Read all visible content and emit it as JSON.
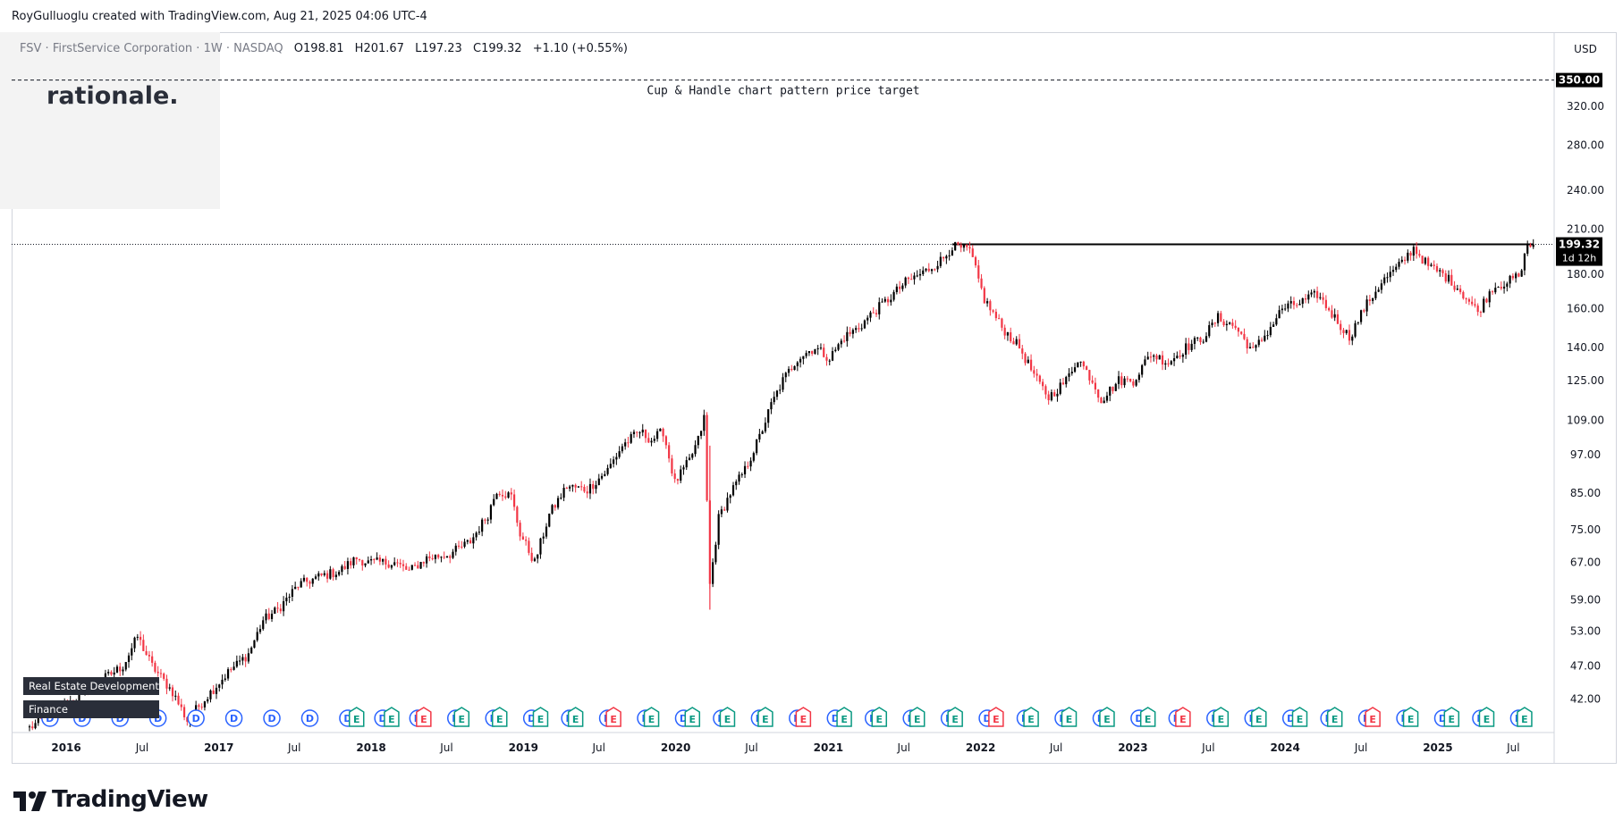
{
  "attribution": "RoyGulluoglu created with TradingView.com, Aug 21, 2025 04:06 UTC-4",
  "brand": {
    "name": "TradingView"
  },
  "watermark": {
    "text": "rationale."
  },
  "sector_labels": [
    "Real Estate Development",
    "Finance"
  ],
  "legend": {
    "symbol": "FSV",
    "name": "FirstService Corporation",
    "interval": "1W",
    "exchange": "NASDAQ",
    "open_label": "O",
    "open": "198.81",
    "high_label": "H",
    "high": "201.67",
    "low_label": "L",
    "low": "197.23",
    "close_label": "C",
    "close": "199.32",
    "change": "+1.10 (+0.55%)"
  },
  "currency": "USD",
  "annotation": {
    "text": "Cup & Handle chart pattern price target",
    "level": 350
  },
  "last_price": {
    "value": "199.32",
    "countdown": "1d 12h"
  },
  "colors": {
    "up": "#000000",
    "down": "#f23645",
    "accent": "#131722",
    "dividend": "#2962ff",
    "earnings": "#089981",
    "earnings_miss": "#f23645"
  },
  "chart_data": {
    "type": "candlestick",
    "scale": "log",
    "ylim": [
      38,
      400
    ],
    "xlim": [
      "2015-10-05",
      "2025-08-25"
    ],
    "ytick_labels": [
      "42.00",
      "47.00",
      "53.00",
      "59.00",
      "67.00",
      "75.00",
      "85.00",
      "97.00",
      "109.00",
      "125.00",
      "140.00",
      "160.00",
      "180.00",
      "210.00",
      "240.00",
      "280.00",
      "320.00"
    ],
    "xtick_labels": [
      {
        "date": "2016-01-01",
        "label": "2016"
      },
      {
        "date": "2016-07-01",
        "label": "Jul"
      },
      {
        "date": "2017-01-01",
        "label": "2017"
      },
      {
        "date": "2017-07-01",
        "label": "Jul"
      },
      {
        "date": "2018-01-01",
        "label": "2018"
      },
      {
        "date": "2018-07-01",
        "label": "Jul"
      },
      {
        "date": "2019-01-01",
        "label": "2019"
      },
      {
        "date": "2019-07-01",
        "label": "Jul"
      },
      {
        "date": "2020-01-01",
        "label": "2020"
      },
      {
        "date": "2020-07-01",
        "label": "Jul"
      },
      {
        "date": "2021-01-01",
        "label": "2021"
      },
      {
        "date": "2021-07-01",
        "label": "Jul"
      },
      {
        "date": "2022-01-01",
        "label": "2022"
      },
      {
        "date": "2022-07-01",
        "label": "Jul"
      },
      {
        "date": "2023-01-01",
        "label": "2023"
      },
      {
        "date": "2023-07-01",
        "label": "Jul"
      },
      {
        "date": "2024-01-01",
        "label": "2024"
      },
      {
        "date": "2024-07-01",
        "label": "Jul"
      },
      {
        "date": "2025-01-01",
        "label": "2025"
      },
      {
        "date": "2025-07-01",
        "label": "Jul"
      }
    ],
    "resistance": {
      "value": 199.32,
      "from": "2021-10-25",
      "to": "2025-08-18"
    },
    "target": {
      "value": 350,
      "label": "350.00"
    },
    "price_path": [
      [
        "2015-10-05",
        38
      ],
      [
        "2015-12-28",
        41
      ],
      [
        "2016-03-07",
        44
      ],
      [
        "2016-05-16",
        47
      ],
      [
        "2016-06-20",
        52
      ],
      [
        "2016-07-25",
        47
      ],
      [
        "2016-09-12",
        43
      ],
      [
        "2016-10-17",
        39
      ],
      [
        "2016-11-28",
        42
      ],
      [
        "2017-01-23",
        46
      ],
      [
        "2017-03-13",
        49
      ],
      [
        "2017-04-17",
        55
      ],
      [
        "2017-05-22",
        57
      ],
      [
        "2017-07-10",
        62
      ],
      [
        "2017-09-04",
        64
      ],
      [
        "2017-10-16",
        65
      ],
      [
        "2017-11-27",
        68
      ],
      [
        "2017-12-25",
        67
      ],
      [
        "2018-02-26",
        67
      ],
      [
        "2018-04-02",
        65
      ],
      [
        "2018-05-14",
        68
      ],
      [
        "2018-07-09",
        69
      ],
      [
        "2018-08-27",
        72
      ],
      [
        "2018-10-08",
        79
      ],
      [
        "2018-10-29",
        86
      ],
      [
        "2018-12-03",
        84
      ],
      [
        "2018-12-24",
        74
      ],
      [
        "2019-01-28",
        67
      ],
      [
        "2019-03-04",
        79
      ],
      [
        "2019-04-15",
        87
      ],
      [
        "2019-06-03",
        86
      ],
      [
        "2019-07-22",
        92
      ],
      [
        "2019-08-26",
        100
      ],
      [
        "2019-10-07",
        105
      ],
      [
        "2019-11-04",
        102
      ],
      [
        "2019-12-02",
        105
      ],
      [
        "2019-12-30",
        88
      ],
      [
        "2020-02-03",
        95
      ],
      [
        "2020-02-24",
        102
      ],
      [
        "2020-03-09",
        110
      ],
      [
        "2020-03-23",
        62
      ],
      [
        "2020-04-13",
        78
      ],
      [
        "2020-05-11",
        85
      ],
      [
        "2020-06-15",
        92
      ],
      [
        "2020-07-20",
        103
      ],
      [
        "2020-08-17",
        115
      ],
      [
        "2020-09-14",
        125
      ],
      [
        "2020-10-19",
        135
      ],
      [
        "2020-11-30",
        140
      ],
      [
        "2021-01-04",
        135
      ],
      [
        "2021-02-08",
        145
      ],
      [
        "2021-03-15",
        150
      ],
      [
        "2021-04-19",
        158
      ],
      [
        "2021-05-24",
        165
      ],
      [
        "2021-07-05",
        175
      ],
      [
        "2021-08-23",
        182
      ],
      [
        "2021-10-04",
        190
      ],
      [
        "2021-10-25",
        198
      ],
      [
        "2021-12-06",
        195
      ],
      [
        "2022-01-10",
        165
      ],
      [
        "2022-02-21",
        150
      ],
      [
        "2022-04-04",
        140
      ],
      [
        "2022-05-16",
        125
      ],
      [
        "2022-06-13",
        118
      ],
      [
        "2022-07-25",
        125
      ],
      [
        "2022-08-22",
        135
      ],
      [
        "2022-09-26",
        125
      ],
      [
        "2022-10-17",
        117
      ],
      [
        "2022-11-28",
        125
      ],
      [
        "2023-01-02",
        125
      ],
      [
        "2023-02-13",
        137
      ],
      [
        "2023-03-27",
        133
      ],
      [
        "2023-05-08",
        140
      ],
      [
        "2023-06-19",
        145
      ],
      [
        "2023-07-24",
        155
      ],
      [
        "2023-09-04",
        150
      ],
      [
        "2023-10-16",
        138
      ],
      [
        "2023-11-27",
        150
      ],
      [
        "2023-12-25",
        160
      ],
      [
        "2024-02-05",
        163
      ],
      [
        "2024-03-18",
        168
      ],
      [
        "2024-04-29",
        155
      ],
      [
        "2024-06-03",
        145
      ],
      [
        "2024-07-08",
        160
      ],
      [
        "2024-08-19",
        175
      ],
      [
        "2024-09-30",
        185
      ],
      [
        "2024-11-04",
        197
      ],
      [
        "2024-12-09",
        185
      ],
      [
        "2025-01-13",
        180
      ],
      [
        "2025-02-17",
        172
      ],
      [
        "2025-03-24",
        162
      ],
      [
        "2025-04-07",
        158
      ],
      [
        "2025-05-12",
        172
      ],
      [
        "2025-06-23",
        176
      ],
      [
        "2025-07-21",
        180
      ],
      [
        "2025-07-28",
        196
      ],
      [
        "2025-08-18",
        199
      ]
    ],
    "events": [
      {
        "type": "D",
        "date": "2015-11-23"
      },
      {
        "type": "D",
        "date": "2016-02-08"
      },
      {
        "type": "D",
        "date": "2016-05-09"
      },
      {
        "type": "D",
        "date": "2016-08-08"
      },
      {
        "type": "D",
        "date": "2016-11-07"
      },
      {
        "type": "D",
        "date": "2017-02-06"
      },
      {
        "type": "D",
        "date": "2017-05-08"
      },
      {
        "type": "D",
        "date": "2017-08-07"
      },
      {
        "type": "D",
        "date": "2017-11-06"
      },
      {
        "type": "E",
        "date": "2017-11-27"
      },
      {
        "type": "D",
        "date": "2018-01-29"
      },
      {
        "type": "E",
        "date": "2018-02-19"
      },
      {
        "type": "D",
        "date": "2018-04-23"
      },
      {
        "type": "E",
        "date": "2018-05-07"
      },
      {
        "type": "D",
        "date": "2018-07-23"
      },
      {
        "type": "E",
        "date": "2018-08-06"
      },
      {
        "type": "D",
        "date": "2018-10-22"
      },
      {
        "type": "E",
        "date": "2018-11-05"
      },
      {
        "type": "D",
        "date": "2019-01-21"
      },
      {
        "type": "E",
        "date": "2019-02-11"
      },
      {
        "type": "D",
        "date": "2019-04-22"
      },
      {
        "type": "E",
        "date": "2019-05-06"
      },
      {
        "type": "D",
        "date": "2019-07-22"
      },
      {
        "type": "E",
        "date": "2019-08-05"
      },
      {
        "type": "D",
        "date": "2019-10-21"
      },
      {
        "type": "E",
        "date": "2019-11-04"
      },
      {
        "type": "D",
        "date": "2020-01-20"
      },
      {
        "type": "E",
        "date": "2020-02-10"
      },
      {
        "type": "D",
        "date": "2020-04-20"
      },
      {
        "type": "E",
        "date": "2020-05-04"
      },
      {
        "type": "D",
        "date": "2020-07-20"
      },
      {
        "type": "E",
        "date": "2020-08-03"
      },
      {
        "type": "D",
        "date": "2020-10-19"
      },
      {
        "type": "E",
        "date": "2020-11-02"
      },
      {
        "type": "D",
        "date": "2021-01-18"
      },
      {
        "type": "E",
        "date": "2021-02-08"
      },
      {
        "type": "D",
        "date": "2021-04-19"
      },
      {
        "type": "E",
        "date": "2021-05-03"
      },
      {
        "type": "D",
        "date": "2021-07-19"
      },
      {
        "type": "E",
        "date": "2021-08-02"
      },
      {
        "type": "D",
        "date": "2021-10-18"
      },
      {
        "type": "E",
        "date": "2021-11-01"
      },
      {
        "type": "D",
        "date": "2022-01-17"
      },
      {
        "type": "E",
        "date": "2022-02-07"
      },
      {
        "type": "D",
        "date": "2022-04-18"
      },
      {
        "type": "E",
        "date": "2022-05-02"
      },
      {
        "type": "D",
        "date": "2022-07-18"
      },
      {
        "type": "E",
        "date": "2022-08-01"
      },
      {
        "type": "D",
        "date": "2022-10-17"
      },
      {
        "type": "E",
        "date": "2022-10-31"
      },
      {
        "type": "D",
        "date": "2023-01-16"
      },
      {
        "type": "E",
        "date": "2023-02-06"
      },
      {
        "type": "D",
        "date": "2023-04-17"
      },
      {
        "type": "E",
        "date": "2023-05-01"
      },
      {
        "type": "D",
        "date": "2023-07-17"
      },
      {
        "type": "E",
        "date": "2023-07-31"
      },
      {
        "type": "D",
        "date": "2023-10-16"
      },
      {
        "type": "E",
        "date": "2023-10-30"
      },
      {
        "type": "D",
        "date": "2024-01-15"
      },
      {
        "type": "E",
        "date": "2024-02-05"
      },
      {
        "type": "D",
        "date": "2024-04-15"
      },
      {
        "type": "E",
        "date": "2024-04-29"
      },
      {
        "type": "D",
        "date": "2024-07-15"
      },
      {
        "type": "E",
        "date": "2024-07-29"
      },
      {
        "type": "D",
        "date": "2024-10-14"
      },
      {
        "type": "E",
        "date": "2024-10-28"
      },
      {
        "type": "D",
        "date": "2025-01-13"
      },
      {
        "type": "E",
        "date": "2025-02-03"
      },
      {
        "type": "D",
        "date": "2025-04-14"
      },
      {
        "type": "E",
        "date": "2025-04-28"
      },
      {
        "type": "D",
        "date": "2025-07-14"
      },
      {
        "type": "E",
        "date": "2025-07-28"
      }
    ]
  }
}
